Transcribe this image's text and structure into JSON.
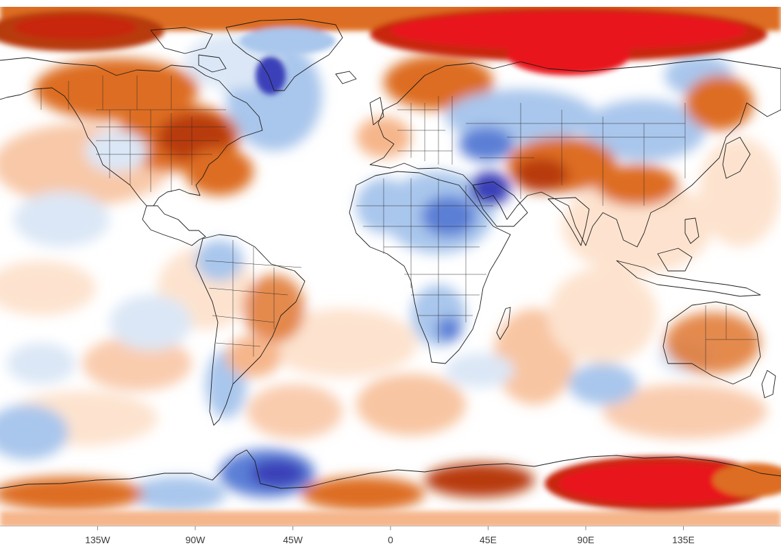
{
  "map": {
    "projection": "equirectangular",
    "colors": {
      "deep_red": "#e8161b",
      "dark_orange": "#b83a08",
      "orange": "#dd6d22",
      "light_orange": "#f6b68b",
      "pale_orange": "#fde3cf",
      "neutral": "#ffffff",
      "pale_blue": "#dbe7f6",
      "light_blue": "#a9c6ec",
      "blue": "#5b7fd6",
      "deep_blue": "#3a3fb8",
      "coastline": "#1a1a1a"
    },
    "x_ticks": [
      "135W",
      "90W",
      "45W",
      "0",
      "45E",
      "90E",
      "135E"
    ],
    "x_tick_values": [
      -135,
      -90,
      -45,
      0,
      45,
      90,
      135
    ],
    "lon_range": [
      -180,
      180
    ],
    "lat_range": [
      -90,
      90
    ]
  }
}
